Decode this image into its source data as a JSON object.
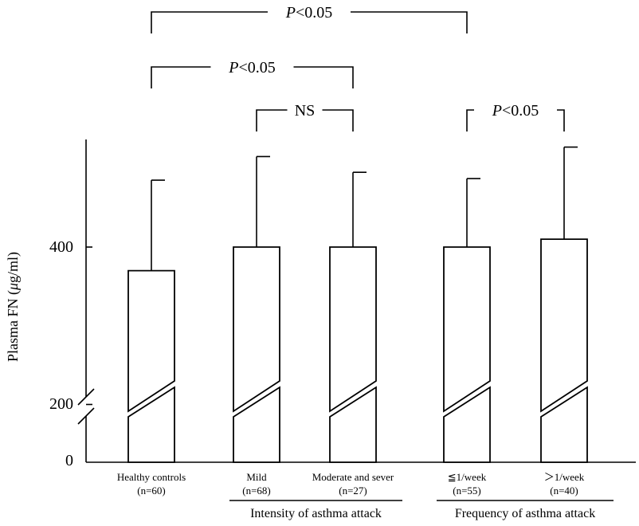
{
  "chart_data": {
    "type": "bar",
    "ylabel": "Plasma FN (μg/ml)",
    "ylabel_parts": {
      "pre": "Plasma FN (",
      "mu": "μ",
      "post": "g/ml)"
    },
    "y_ticks": [
      "0",
      "200",
      "400"
    ],
    "y_axis_break": true,
    "categories": [
      {
        "name": "Healthy controls",
        "n": "(n=60)"
      },
      {
        "name": "Mild",
        "n": "(n=68)"
      },
      {
        "name": "Moderate and sever",
        "n": "(n=27)"
      },
      {
        "name": "≦1/week",
        "n": "(n=55)"
      },
      {
        "name": "＞1/week",
        "n": "(n=40)"
      }
    ],
    "values": [
      370,
      400,
      400,
      400,
      410
    ],
    "error_upper": [
      485,
      515,
      495,
      487,
      527
    ],
    "groups": [
      {
        "label": "Intensity of asthma attack",
        "members": [
          1,
          2
        ]
      },
      {
        "label": "Frequency of asthma attack",
        "members": [
          3,
          4
        ]
      }
    ],
    "comparisons": [
      {
        "from": 0,
        "to": 3,
        "label": "P<0.05",
        "level": 0
      },
      {
        "from": 0,
        "to": 2,
        "label": "P<0.05",
        "level": 1
      },
      {
        "from": 1,
        "to": 2,
        "label": "NS",
        "level": 2
      },
      {
        "from": 3,
        "to": 4,
        "label": "P<0.05",
        "level": 2
      }
    ]
  }
}
